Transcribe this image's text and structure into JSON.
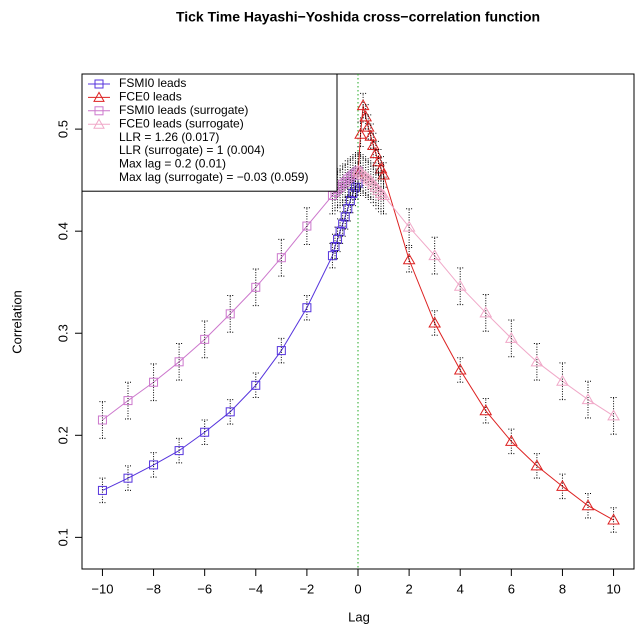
{
  "chart_data": {
    "type": "line",
    "title": "Tick Time Hayashi−Yoshida cross−correlation function",
    "x_label": "Lag",
    "y_label": "Correlation",
    "xlim": [
      -10.8,
      10.8
    ],
    "ylim": [
      0.069,
      0.554
    ],
    "xticks": [
      {
        "value": -10,
        "label": "−10"
      },
      {
        "value": -8,
        "label": "−8"
      },
      {
        "value": -6,
        "label": "−6"
      },
      {
        "value": -4,
        "label": "−4"
      },
      {
        "value": -2,
        "label": "−2"
      },
      0,
      2,
      4,
      6,
      8,
      10
    ],
    "yticks": [
      0.1,
      0.2,
      0.3,
      0.4,
      0.5
    ],
    "vline": {
      "x": 0,
      "color": "#22aa22"
    },
    "legend": "top-left",
    "annotations": [
      "LLR = 1.26 (0.017)",
      "LLR (surrogate) = 1 (0.004)",
      "Max lag = 0.2 (0.01)",
      "Max lag (surrogate) = −0.03 (0.059)"
    ],
    "series": [
      {
        "name": "FSMI0 leads",
        "color": "#5533dd",
        "marker": "square",
        "x": [
          -10,
          -9,
          -8,
          -7,
          -6,
          -5,
          -4,
          -3,
          -2,
          -1,
          -0.9,
          -0.8,
          -0.7,
          -0.6,
          -0.5,
          -0.4,
          -0.3,
          -0.2,
          -0.1,
          0
        ],
        "values": [
          0.146,
          0.158,
          0.171,
          0.185,
          0.203,
          0.223,
          0.249,
          0.283,
          0.325,
          0.376,
          0.385,
          0.392,
          0.4,
          0.407,
          0.414,
          0.422,
          0.43,
          0.437,
          0.443,
          0.447
        ],
        "errors": [
          0.012,
          0.012,
          0.012,
          0.012,
          0.012,
          0.012,
          0.012,
          0.012,
          0.012,
          0.012,
          0.012,
          0.012,
          0.012,
          0.012,
          0.012,
          0.012,
          0.012,
          0.012,
          0.012,
          0.012
        ]
      },
      {
        "name": "FCE0 leads",
        "color": "#dd2222",
        "marker": "triangle",
        "x": [
          0,
          0.1,
          0.2,
          0.3,
          0.4,
          0.5,
          0.6,
          0.7,
          0.8,
          0.9,
          1,
          2,
          3,
          4,
          5,
          6,
          7,
          8,
          9,
          10
        ],
        "values": [
          0.455,
          0.495,
          0.523,
          0.512,
          0.502,
          0.493,
          0.484,
          0.476,
          0.468,
          0.461,
          0.455,
          0.372,
          0.31,
          0.264,
          0.224,
          0.194,
          0.17,
          0.15,
          0.131,
          0.117
        ],
        "errors": [
          0.012,
          0.012,
          0.012,
          0.012,
          0.012,
          0.012,
          0.012,
          0.012,
          0.012,
          0.012,
          0.012,
          0.012,
          0.012,
          0.012,
          0.012,
          0.012,
          0.012,
          0.012,
          0.012,
          0.012
        ]
      },
      {
        "name": "FSMI0 leads (surrogate)",
        "color": "#cc77cc",
        "marker": "square",
        "x": [
          -10,
          -9,
          -8,
          -7,
          -6,
          -5,
          -4,
          -3,
          -2,
          -1,
          -0.9,
          -0.8,
          -0.7,
          -0.6,
          -0.5,
          -0.4,
          -0.3,
          -0.2,
          -0.1,
          0
        ],
        "values": [
          0.215,
          0.234,
          0.252,
          0.272,
          0.294,
          0.319,
          0.345,
          0.374,
          0.405,
          0.435,
          0.438,
          0.441,
          0.443,
          0.446,
          0.448,
          0.451,
          0.453,
          0.455,
          0.457,
          0.459
        ],
        "errors": [
          0.018,
          0.018,
          0.018,
          0.018,
          0.018,
          0.018,
          0.018,
          0.018,
          0.018,
          0.018,
          0.018,
          0.018,
          0.018,
          0.018,
          0.018,
          0.018,
          0.018,
          0.018,
          0.018,
          0.018
        ]
      },
      {
        "name": "FCE0 leads (surrogate)",
        "color": "#f0a8c8",
        "marker": "triangle",
        "x": [
          0,
          0.1,
          0.2,
          0.3,
          0.4,
          0.5,
          0.6,
          0.7,
          0.8,
          0.9,
          1,
          2,
          3,
          4,
          5,
          6,
          7,
          8,
          9,
          10
        ],
        "values": [
          0.459,
          0.457,
          0.455,
          0.453,
          0.451,
          0.449,
          0.446,
          0.443,
          0.44,
          0.437,
          0.435,
          0.404,
          0.376,
          0.346,
          0.32,
          0.295,
          0.272,
          0.253,
          0.235,
          0.219
        ],
        "errors": [
          0.018,
          0.018,
          0.018,
          0.018,
          0.018,
          0.018,
          0.018,
          0.018,
          0.018,
          0.018,
          0.018,
          0.018,
          0.018,
          0.018,
          0.018,
          0.018,
          0.018,
          0.018,
          0.018,
          0.018
        ]
      }
    ]
  }
}
